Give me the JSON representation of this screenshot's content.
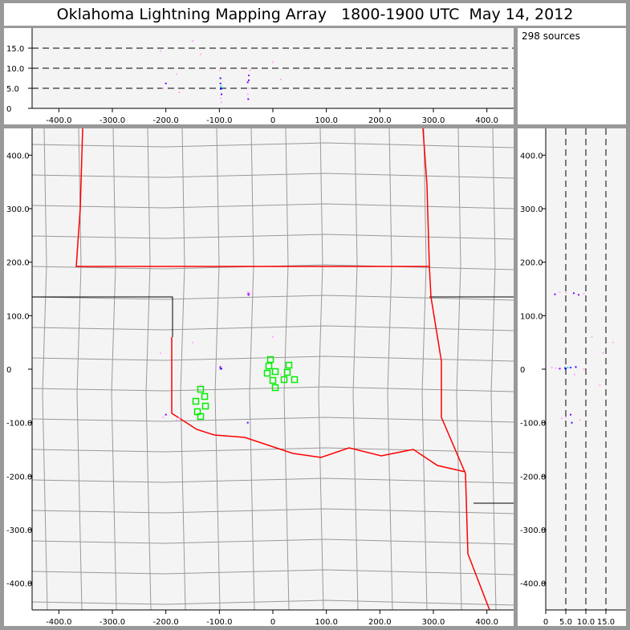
{
  "title": "Oklahoma Lightning Mapping Array   1800-1900 UTC  May 14, 2012",
  "source_count_label": "298 sources",
  "colors": {
    "state_border": "#ff0000",
    "county_border": "#999999",
    "background": "#f4f4f4",
    "station": "#00ee00",
    "frame": "#999999"
  },
  "axes": {
    "x_km_range": [
      -450,
      450
    ],
    "y_km_range": [
      -450,
      450
    ],
    "alt_km_range": [
      0,
      20
    ],
    "x_ticks": [
      "-400.0",
      "-300.0",
      "-200.0",
      "-100.0",
      "0",
      "100.0",
      "200.0",
      "300.0",
      "400.0"
    ],
    "y_ticks": [
      "400.0",
      "300.0",
      "200.0",
      "100.0",
      "0",
      "-100.0",
      "-200.0",
      "-300.0",
      "-400.0"
    ],
    "alt_ticks_top": [
      "15.0",
      "10.0",
      "5.0",
      "0"
    ],
    "alt_ticks_side": [
      "0",
      "5.0",
      "10.0",
      "15.0"
    ],
    "alt_gridlines_dashed": [
      5,
      10,
      15
    ]
  },
  "stations": [
    {
      "x": -4.5,
      "y": 18
    },
    {
      "x": -7.5,
      "y": 6
    },
    {
      "x": -10.5,
      "y": -7.5
    },
    {
      "x": 4.5,
      "y": -4.5
    },
    {
      "x": 30,
      "y": 7.5
    },
    {
      "x": 27,
      "y": -6
    },
    {
      "x": 0,
      "y": -21
    },
    {
      "x": 21,
      "y": -19.5
    },
    {
      "x": 40.5,
      "y": -19.5
    },
    {
      "x": 4.5,
      "y": -34.5
    },
    {
      "x": -135,
      "y": -37.5
    },
    {
      "x": -127.5,
      "y": -51
    },
    {
      "x": -144,
      "y": -60
    },
    {
      "x": -126,
      "y": -69
    },
    {
      "x": -141,
      "y": -79.5
    },
    {
      "x": -135,
      "y": -88.5
    }
  ],
  "sources": [
    {
      "x": -97,
      "y": 3,
      "alt": 5.5,
      "c": "#00e0e0"
    },
    {
      "x": -97,
      "y": 2,
      "alt": 4.8,
      "c": "#2020ff"
    },
    {
      "x": -98,
      "y": 3,
      "alt": 6.2,
      "c": "#6000ff"
    },
    {
      "x": -96,
      "y": 1,
      "alt": 3.5,
      "c": "#8000ff"
    },
    {
      "x": -98,
      "y": 4,
      "alt": 7.5,
      "c": "#4000ff"
    },
    {
      "x": -97,
      "y": 2,
      "alt": 2.5,
      "c": "#ffb0ff"
    },
    {
      "x": -99,
      "y": 0,
      "alt": 9.5,
      "c": "#ffb0ff"
    },
    {
      "x": -96,
      "y": 3,
      "alt": 1.5,
      "c": "#ffb0ff"
    },
    {
      "x": -97,
      "y": 1,
      "alt": 5,
      "c": "#0000ff"
    },
    {
      "x": -45,
      "y": 142,
      "alt": 7,
      "c": "#8000ff"
    },
    {
      "x": -46,
      "y": 140,
      "alt": 2.3,
      "c": "#8000ff"
    },
    {
      "x": -44,
      "y": 143,
      "alt": 5,
      "c": "#ffb0ff"
    },
    {
      "x": -45,
      "y": 139,
      "alt": 8.2,
      "c": "#a000ff"
    },
    {
      "x": -47,
      "y": 144,
      "alt": 3.5,
      "c": "#ffb0ff"
    },
    {
      "x": -43,
      "y": 141,
      "alt": 9.5,
      "c": "#ffb0ff"
    },
    {
      "x": -200,
      "y": -85,
      "alt": 6.2,
      "c": "#8000ff"
    },
    {
      "x": -205,
      "y": -90,
      "alt": 5,
      "c": "#ffb0ff"
    },
    {
      "x": -180,
      "y": -95,
      "alt": 8.5,
      "c": "#ffb0ff"
    },
    {
      "x": -175,
      "y": -92,
      "alt": 4,
      "c": "#ffb0ff"
    },
    {
      "x": -150,
      "y": 50,
      "alt": 16.8,
      "c": "#ffb0ff"
    },
    {
      "x": -135,
      "y": -30,
      "alt": 13.5,
      "c": "#ffb0ff"
    },
    {
      "x": 0,
      "y": 60,
      "alt": 11.5,
      "c": "#ffb0ff"
    },
    {
      "x": 15,
      "y": -10,
      "alt": 7.2,
      "c": "#ffb0ff"
    },
    {
      "x": -47,
      "y": -100,
      "alt": 6.5,
      "c": "#6000ff"
    },
    {
      "x": -210,
      "y": 30,
      "alt": 14.3,
      "c": "#ffb0ff"
    }
  ]
}
